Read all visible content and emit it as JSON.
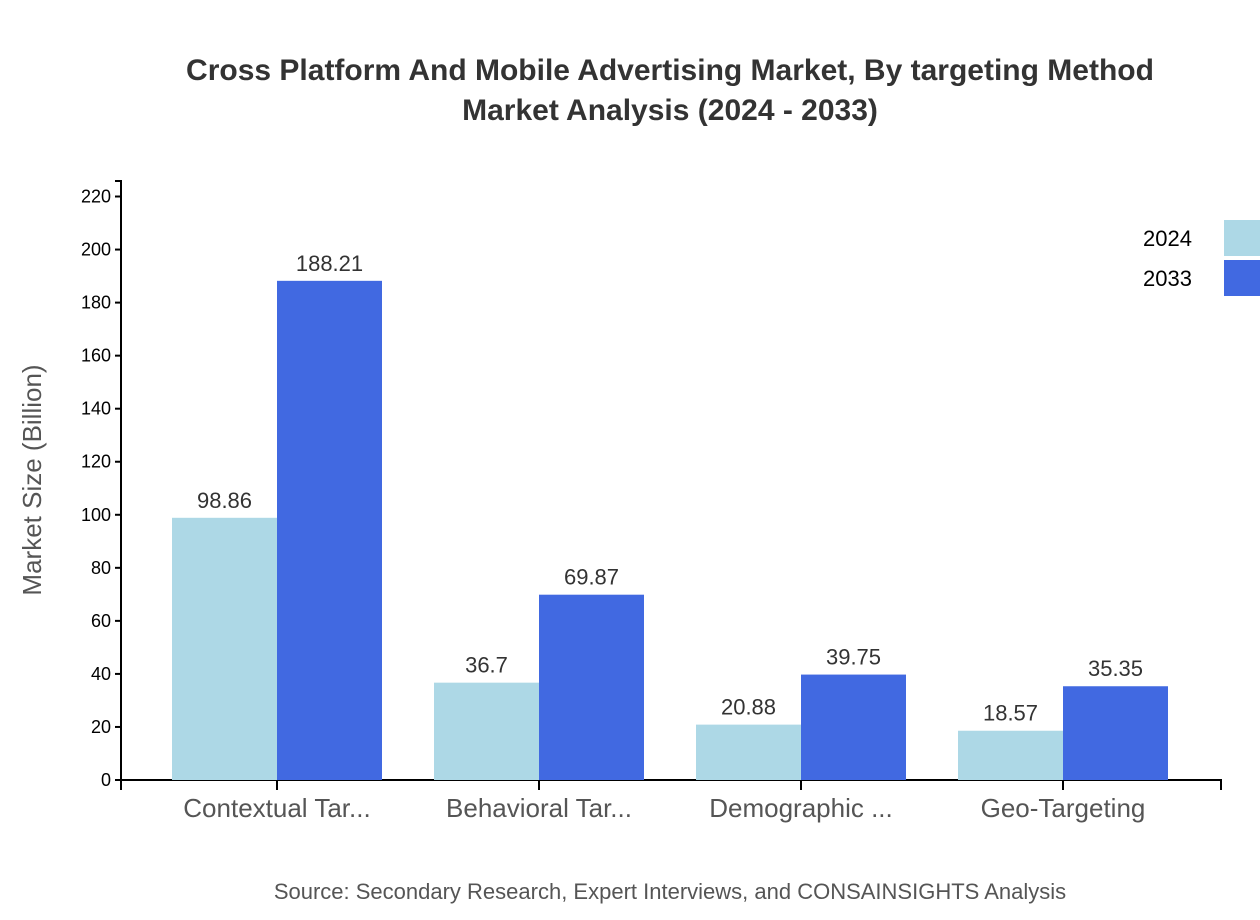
{
  "chart_data": {
    "type": "bar",
    "title_lines": [
      "Cross Platform And Mobile Advertising Market, By targeting Method",
      "Market Analysis (2024 - 2033)"
    ],
    "xlabel": "",
    "ylabel": "Market Size (Billion)",
    "categories": [
      "Contextual Tar...",
      "Behavioral Tar...",
      "Demographic ...",
      "Geo-Targeting"
    ],
    "series": [
      {
        "name": "2024",
        "color": "#add8e6",
        "values": [
          98.86,
          36.7,
          20.88,
          18.57
        ]
      },
      {
        "name": "2033",
        "color": "#4169e1",
        "values": [
          188.21,
          69.87,
          39.75,
          35.35
        ]
      }
    ],
    "ylim": [
      0,
      225.85
    ],
    "yticks": [
      0,
      20,
      40,
      60,
      80,
      100,
      120,
      140,
      160,
      180,
      200,
      220
    ],
    "grid": false,
    "legend_position": "top-right",
    "source": "Source: Secondary Research, Expert Interviews, and CONSAINSIGHTS Analysis"
  }
}
